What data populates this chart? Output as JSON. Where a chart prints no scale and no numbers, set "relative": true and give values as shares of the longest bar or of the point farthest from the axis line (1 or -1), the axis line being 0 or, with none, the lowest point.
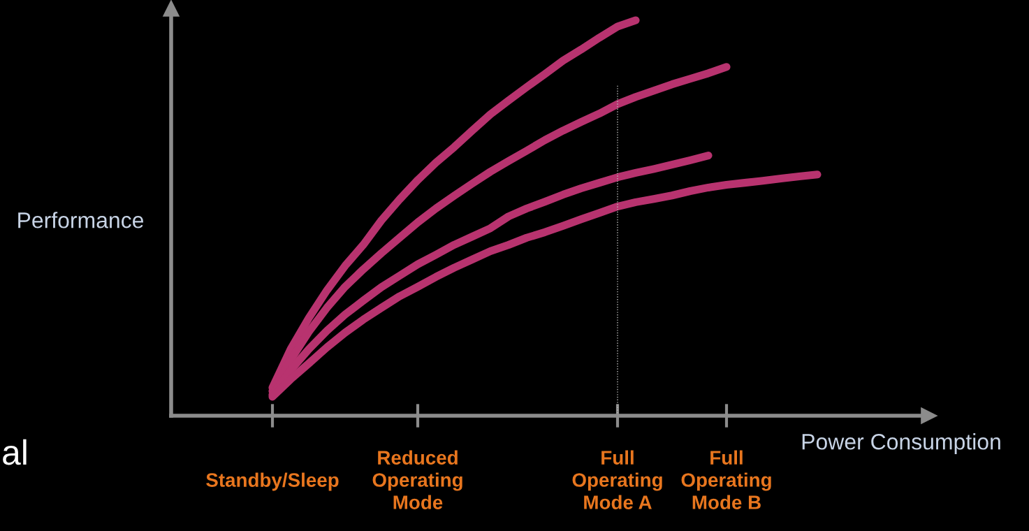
{
  "chart_data": {
    "type": "line",
    "relative": true,
    "xlabel": "Power Consumption",
    "ylabel": "Performance",
    "categories": [
      null,
      null,
      null,
      null,
      null,
      "Standby/Sleep",
      null,
      null,
      null,
      null,
      null,
      null,
      null,
      "Reduced\nOperating\nMode",
      null,
      null,
      null,
      null,
      null,
      null,
      null,
      null,
      null,
      null,
      "Full\nOperating\nMode A",
      null,
      null,
      null,
      null,
      null,
      "Full\nOperating\nMode B",
      null,
      null,
      null,
      null,
      null,
      null,
      null,
      null,
      null,
      null,
      null
    ],
    "ref_lines": [
      {
        "axis": "x",
        "value": "Full\nOperating\nMode A",
        "label": null,
        "color": "#bbbbbb",
        "line_style": "dotted"
      }
    ],
    "annotations": [
      "al"
    ],
    "grid": false,
    "legend": false,
    "marker": "none",
    "line_style": "solid",
    "series": [
      {
        "color": "#b8336f",
        "values": [
          null,
          null,
          null,
          null,
          null,
          0.071,
          0.168,
          0.247,
          0.317,
          0.379,
          0.432,
          0.494,
          0.547,
          0.596,
          0.64,
          0.679,
          0.721,
          0.762,
          0.797,
          0.831,
          0.864,
          0.898,
          0.926,
          0.956,
          0.984,
          1.0,
          null,
          null,
          null,
          null,
          null,
          null,
          null,
          null,
          null,
          null,
          null,
          null,
          null,
          null,
          null,
          null
        ]
      },
      {
        "color": "#b8336f",
        "values": [
          null,
          null,
          null,
          null,
          null,
          0.062,
          0.141,
          0.212,
          0.273,
          0.326,
          0.37,
          0.411,
          0.45,
          0.489,
          0.524,
          0.556,
          0.587,
          0.617,
          0.644,
          0.67,
          0.697,
          0.721,
          0.743,
          0.764,
          0.788,
          0.806,
          0.822,
          0.838,
          0.852,
          0.866,
          0.882,
          null,
          null,
          null,
          null,
          null,
          null,
          null,
          null,
          null,
          null,
          null
        ]
      },
      {
        "color": "#b8336f",
        "values": [
          null,
          null,
          null,
          null,
          null,
          0.053,
          0.115,
          0.168,
          0.215,
          0.256,
          0.291,
          0.325,
          0.354,
          0.383,
          0.407,
          0.432,
          0.453,
          0.474,
          0.504,
          0.524,
          0.541,
          0.559,
          0.575,
          0.589,
          0.603,
          0.614,
          0.624,
          0.635,
          0.646,
          0.658,
          null,
          null,
          null,
          null,
          null,
          null,
          null,
          null,
          null,
          null,
          null,
          null
        ]
      },
      {
        "color": "#b8336f",
        "values": [
          null,
          null,
          null,
          null,
          null,
          0.048,
          0.092,
          0.132,
          0.173,
          0.21,
          0.243,
          0.273,
          0.302,
          0.326,
          0.351,
          0.374,
          0.395,
          0.416,
          0.432,
          0.45,
          0.464,
          0.48,
          0.497,
          0.513,
          0.529,
          0.54,
          0.548,
          0.557,
          0.568,
          0.577,
          0.584,
          0.589,
          0.594,
          0.6,
          0.605,
          0.61,
          null,
          null,
          null,
          null,
          null,
          null
        ]
      }
    ]
  }
}
